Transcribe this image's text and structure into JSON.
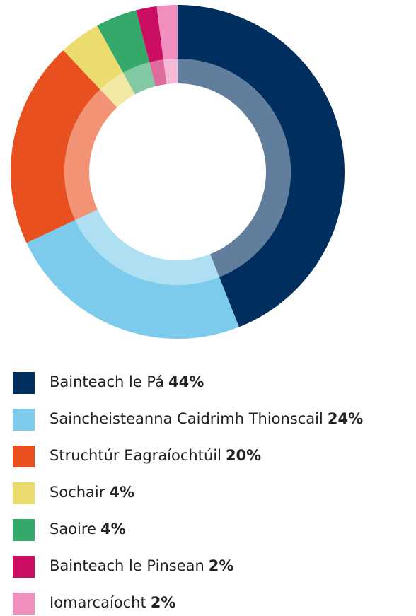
{
  "chart_data": {
    "type": "donut",
    "categories": [
      "Bainteach le Pá",
      "Saincheisteanna Caidrimh Thionscail",
      "Struchtúr Eagraíochtúil",
      "Sochair",
      "Saoire",
      "Bainteach le Pinsean",
      "Iomarcaíocht"
    ],
    "values": [
      44,
      24,
      20,
      4,
      4,
      2,
      2
    ],
    "value_labels": [
      "44%",
      "24%",
      "20%",
      "4%",
      "4%",
      "2%",
      "2%"
    ],
    "colors": [
      "#002f5f",
      "#7ccbec",
      "#e8501f",
      "#ebdc6e",
      "#35a86b",
      "#cc0e62",
      "#f08fbe"
    ]
  }
}
